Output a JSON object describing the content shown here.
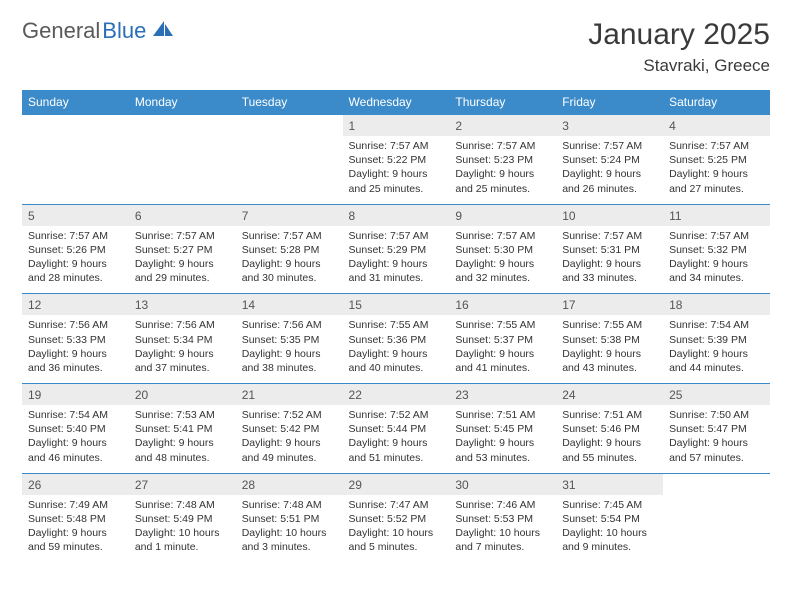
{
  "brand": {
    "part1": "General",
    "part2": "Blue",
    "logo_color": "#2a6fb5",
    "text_color_1": "#5a5a5a"
  },
  "title": "January 2025",
  "location": "Stavraki, Greece",
  "colors": {
    "header_bg": "#3b8bca",
    "header_text": "#ffffff",
    "daynum_bg": "#ececec",
    "rule": "#3b8bca",
    "body_text": "#333333",
    "page_bg": "#ffffff"
  },
  "day_headers": [
    "Sunday",
    "Monday",
    "Tuesday",
    "Wednesday",
    "Thursday",
    "Friday",
    "Saturday"
  ],
  "weeks": [
    [
      null,
      null,
      null,
      {
        "n": "1",
        "sr": "7:57 AM",
        "ss": "5:22 PM",
        "dl": "9 hours and 25 minutes."
      },
      {
        "n": "2",
        "sr": "7:57 AM",
        "ss": "5:23 PM",
        "dl": "9 hours and 25 minutes."
      },
      {
        "n": "3",
        "sr": "7:57 AM",
        "ss": "5:24 PM",
        "dl": "9 hours and 26 minutes."
      },
      {
        "n": "4",
        "sr": "7:57 AM",
        "ss": "5:25 PM",
        "dl": "9 hours and 27 minutes."
      }
    ],
    [
      {
        "n": "5",
        "sr": "7:57 AM",
        "ss": "5:26 PM",
        "dl": "9 hours and 28 minutes."
      },
      {
        "n": "6",
        "sr": "7:57 AM",
        "ss": "5:27 PM",
        "dl": "9 hours and 29 minutes."
      },
      {
        "n": "7",
        "sr": "7:57 AM",
        "ss": "5:28 PM",
        "dl": "9 hours and 30 minutes."
      },
      {
        "n": "8",
        "sr": "7:57 AM",
        "ss": "5:29 PM",
        "dl": "9 hours and 31 minutes."
      },
      {
        "n": "9",
        "sr": "7:57 AM",
        "ss": "5:30 PM",
        "dl": "9 hours and 32 minutes."
      },
      {
        "n": "10",
        "sr": "7:57 AM",
        "ss": "5:31 PM",
        "dl": "9 hours and 33 minutes."
      },
      {
        "n": "11",
        "sr": "7:57 AM",
        "ss": "5:32 PM",
        "dl": "9 hours and 34 minutes."
      }
    ],
    [
      {
        "n": "12",
        "sr": "7:56 AM",
        "ss": "5:33 PM",
        "dl": "9 hours and 36 minutes."
      },
      {
        "n": "13",
        "sr": "7:56 AM",
        "ss": "5:34 PM",
        "dl": "9 hours and 37 minutes."
      },
      {
        "n": "14",
        "sr": "7:56 AM",
        "ss": "5:35 PM",
        "dl": "9 hours and 38 minutes."
      },
      {
        "n": "15",
        "sr": "7:55 AM",
        "ss": "5:36 PM",
        "dl": "9 hours and 40 minutes."
      },
      {
        "n": "16",
        "sr": "7:55 AM",
        "ss": "5:37 PM",
        "dl": "9 hours and 41 minutes."
      },
      {
        "n": "17",
        "sr": "7:55 AM",
        "ss": "5:38 PM",
        "dl": "9 hours and 43 minutes."
      },
      {
        "n": "18",
        "sr": "7:54 AM",
        "ss": "5:39 PM",
        "dl": "9 hours and 44 minutes."
      }
    ],
    [
      {
        "n": "19",
        "sr": "7:54 AM",
        "ss": "5:40 PM",
        "dl": "9 hours and 46 minutes."
      },
      {
        "n": "20",
        "sr": "7:53 AM",
        "ss": "5:41 PM",
        "dl": "9 hours and 48 minutes."
      },
      {
        "n": "21",
        "sr": "7:52 AM",
        "ss": "5:42 PM",
        "dl": "9 hours and 49 minutes."
      },
      {
        "n": "22",
        "sr": "7:52 AM",
        "ss": "5:44 PM",
        "dl": "9 hours and 51 minutes."
      },
      {
        "n": "23",
        "sr": "7:51 AM",
        "ss": "5:45 PM",
        "dl": "9 hours and 53 minutes."
      },
      {
        "n": "24",
        "sr": "7:51 AM",
        "ss": "5:46 PM",
        "dl": "9 hours and 55 minutes."
      },
      {
        "n": "25",
        "sr": "7:50 AM",
        "ss": "5:47 PM",
        "dl": "9 hours and 57 minutes."
      }
    ],
    [
      {
        "n": "26",
        "sr": "7:49 AM",
        "ss": "5:48 PM",
        "dl": "9 hours and 59 minutes."
      },
      {
        "n": "27",
        "sr": "7:48 AM",
        "ss": "5:49 PM",
        "dl": "10 hours and 1 minute."
      },
      {
        "n": "28",
        "sr": "7:48 AM",
        "ss": "5:51 PM",
        "dl": "10 hours and 3 minutes."
      },
      {
        "n": "29",
        "sr": "7:47 AM",
        "ss": "5:52 PM",
        "dl": "10 hours and 5 minutes."
      },
      {
        "n": "30",
        "sr": "7:46 AM",
        "ss": "5:53 PM",
        "dl": "10 hours and 7 minutes."
      },
      {
        "n": "31",
        "sr": "7:45 AM",
        "ss": "5:54 PM",
        "dl": "10 hours and 9 minutes."
      },
      null
    ]
  ],
  "labels": {
    "sunrise": "Sunrise: ",
    "sunset": "Sunset: ",
    "daylight": "Daylight: "
  }
}
